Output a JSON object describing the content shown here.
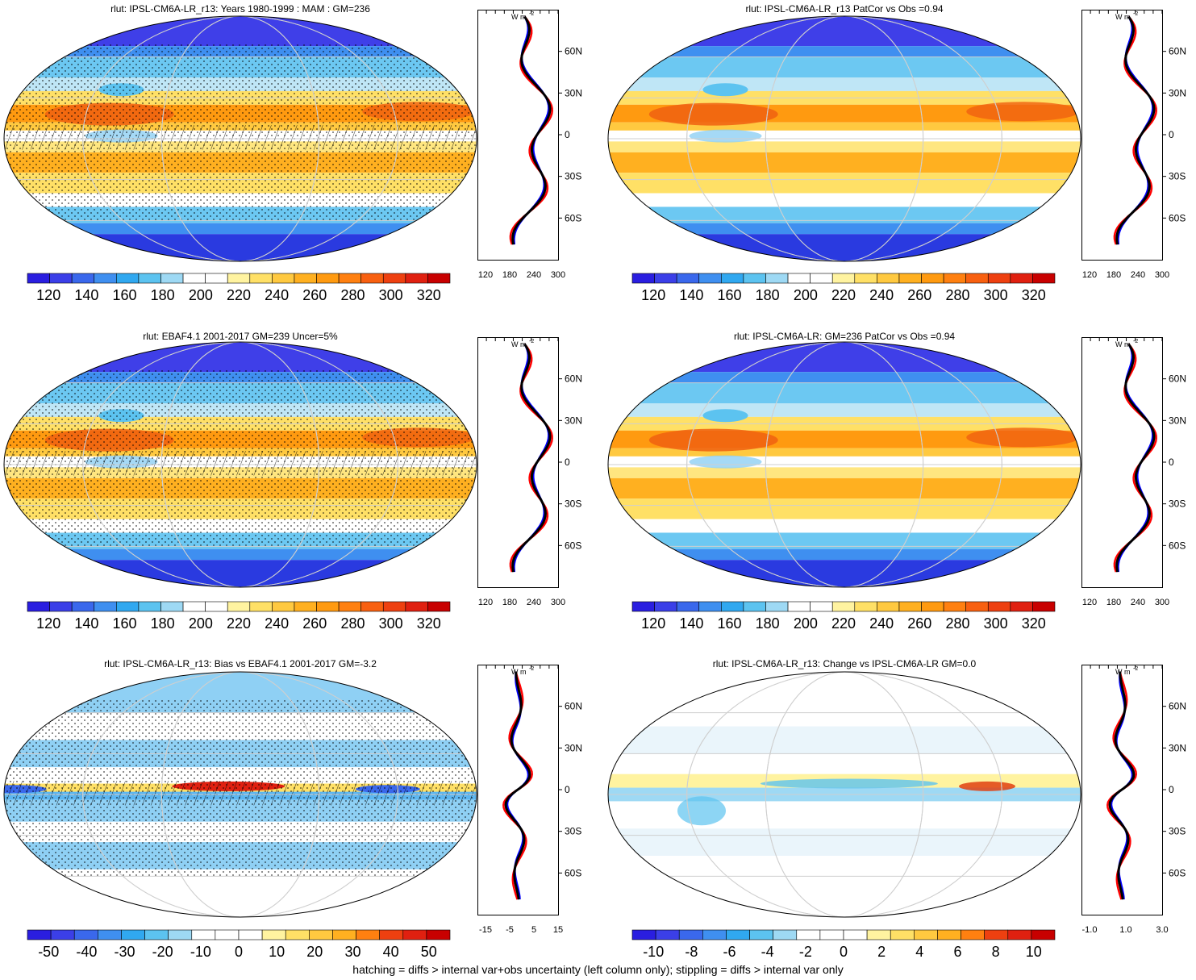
{
  "panels": [
    {
      "title": "rlut: IPSL-CM6A-LR_r13: Years 1980-1999 : MAM : GM=236",
      "type": "abs",
      "colorbar_labels": [
        "120",
        "140",
        "160",
        "180",
        "200",
        "220",
        "240",
        "260",
        "280",
        "300",
        "320"
      ],
      "profile_xticks": [
        "120",
        "180",
        "240",
        "300"
      ]
    },
    {
      "title": "rlut: IPSL-CM6A-LR_r13 PatCor vs Obs =0.94",
      "type": "abs",
      "colorbar_labels": [
        "120",
        "140",
        "160",
        "180",
        "200",
        "220",
        "240",
        "260",
        "280",
        "300",
        "320"
      ],
      "profile_xticks": [
        "120",
        "180",
        "240",
        "300"
      ]
    },
    {
      "title": "rlut: EBAF4.1 2001-2017 GM=239 Uncer=5%",
      "type": "abs",
      "colorbar_labels": [
        "120",
        "140",
        "160",
        "180",
        "200",
        "220",
        "240",
        "260",
        "280",
        "300",
        "320"
      ],
      "profile_xticks": [
        "120",
        "180",
        "240",
        "300"
      ]
    },
    {
      "title": "rlut: IPSL-CM6A-LR: GM=236 PatCor vs Obs =0.94",
      "type": "abs",
      "colorbar_labels": [
        "120",
        "140",
        "160",
        "180",
        "200",
        "220",
        "240",
        "260",
        "280",
        "300",
        "320"
      ],
      "profile_xticks": [
        "120",
        "180",
        "240",
        "300"
      ]
    },
    {
      "title": "rlut: IPSL-CM6A-LR_r13: Bias vs EBAF4.1 2001-2017 GM=-3.2",
      "type": "bias",
      "colorbar_labels": [
        "-50",
        "-40",
        "-30",
        "-20",
        "-10",
        "0",
        "10",
        "20",
        "30",
        "40",
        "50"
      ],
      "profile_xticks": [
        "-15",
        "-5",
        "5",
        "15"
      ]
    },
    {
      "title": "rlut: IPSL-CM6A-LR_r13: Change vs IPSL-CM6A-LR GM=0.0",
      "type": "change",
      "colorbar_labels": [
        "-10",
        "-8",
        "-6",
        "-4",
        "-2",
        "0",
        "2",
        "4",
        "6",
        "8",
        "10"
      ],
      "profile_xticks": [
        "-1.0",
        "1.0",
        "3.0"
      ]
    }
  ],
  "profile_units": "W m",
  "profile_units_sup": "-2",
  "lat_labels": [
    "60N",
    "30N",
    "0",
    "30S",
    "60S"
  ],
  "footer": "hatching = diffs > internal var+obs uncertainty (left column only); stippling = diffs > internal var only",
  "series_colors": {
    "model": "#000000",
    "obs": "#ff0000",
    "other": "#0000ff"
  },
  "colormap_abs": [
    "#2a1ee0",
    "#3b3fe8",
    "#3a68ec",
    "#3f8ff0",
    "#30a8f0",
    "#5cc3f0",
    "#9ed9f4",
    "#ffffff",
    "#ffffff",
    "#fff3a0",
    "#ffe066",
    "#ffc940",
    "#ffb020",
    "#ff9a10",
    "#ff8010",
    "#f86010",
    "#ee4010",
    "#e02010",
    "#c80000"
  ]
}
